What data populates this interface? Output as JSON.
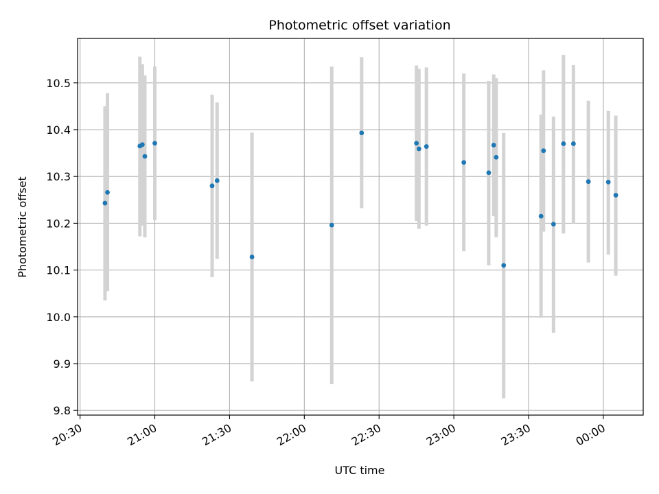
{
  "chart_data": {
    "type": "scatter",
    "title": "Photometric offset variation",
    "xlabel": "UTC time",
    "ylabel": "Photometric offset",
    "x_ticks": [
      "20:30",
      "21:00",
      "21:30",
      "22:00",
      "22:30",
      "23:00",
      "23:30",
      "00:00"
    ],
    "x_range": [
      "20:30",
      "00:16"
    ],
    "ylim": [
      9.79,
      10.595
    ],
    "y_ticks": [
      9.8,
      9.9,
      10.0,
      10.1,
      10.2,
      10.3,
      10.4,
      10.5
    ],
    "y_tick_labels": [
      "9.8",
      "9.9",
      "10.0",
      "10.1",
      "10.2",
      "10.3",
      "10.4",
      "10.5"
    ],
    "grid": true,
    "colors": {
      "points": "#1f77b4",
      "error_bars": "#d3d3d3",
      "grid": "#b0b0b0"
    },
    "series": [
      {
        "points": [
          {
            "x": "20:40",
            "y": 10.243,
            "low": 10.035,
            "high": 10.45
          },
          {
            "x": "20:41",
            "y": 10.266,
            "low": 10.055,
            "high": 10.478
          },
          {
            "x": "20:54",
            "y": 10.365,
            "low": 10.172,
            "high": 10.556
          },
          {
            "x": "20:55",
            "y": 10.368,
            "low": 10.195,
            "high": 10.54
          },
          {
            "x": "20:56",
            "y": 10.343,
            "low": 10.17,
            "high": 10.516
          },
          {
            "x": "21:00",
            "y": 10.371,
            "low": 10.207,
            "high": 10.535
          },
          {
            "x": "21:23",
            "y": 10.28,
            "low": 10.085,
            "high": 10.475
          },
          {
            "x": "21:25",
            "y": 10.291,
            "low": 10.124,
            "high": 10.458
          },
          {
            "x": "21:39",
            "y": 10.128,
            "low": 9.862,
            "high": 10.394
          },
          {
            "x": "22:11",
            "y": 10.196,
            "low": 9.856,
            "high": 10.535
          },
          {
            "x": "22:23",
            "y": 10.393,
            "low": 10.232,
            "high": 10.555
          },
          {
            "x": "22:45",
            "y": 10.371,
            "low": 10.205,
            "high": 10.537
          },
          {
            "x": "22:46",
            "y": 10.359,
            "low": 10.188,
            "high": 10.53
          },
          {
            "x": "22:49",
            "y": 10.364,
            "low": 10.195,
            "high": 10.533
          },
          {
            "x": "23:04",
            "y": 10.33,
            "low": 10.14,
            "high": 10.52
          },
          {
            "x": "23:14",
            "y": 10.308,
            "low": 10.11,
            "high": 10.504
          },
          {
            "x": "23:16",
            "y": 10.367,
            "low": 10.215,
            "high": 10.518
          },
          {
            "x": "23:17",
            "y": 10.341,
            "low": 10.17,
            "high": 10.51
          },
          {
            "x": "23:20",
            "y": 10.11,
            "low": 9.826,
            "high": 10.393
          },
          {
            "x": "23:35",
            "y": 10.215,
            "low": 9.998,
            "high": 10.432
          },
          {
            "x": "23:36",
            "y": 10.355,
            "low": 10.182,
            "high": 10.527
          },
          {
            "x": "23:40",
            "y": 10.198,
            "low": 9.966,
            "high": 10.428
          },
          {
            "x": "23:44",
            "y": 10.37,
            "low": 10.178,
            "high": 10.56
          },
          {
            "x": "23:48",
            "y": 10.37,
            "low": 10.2,
            "high": 10.538
          },
          {
            "x": "23:54",
            "y": 10.289,
            "low": 10.116,
            "high": 10.462
          },
          {
            "x": "00:02",
            "y": 10.288,
            "low": 10.133,
            "high": 10.44
          },
          {
            "x": "00:05",
            "y": 10.26,
            "low": 10.088,
            "high": 10.43
          }
        ]
      }
    ]
  }
}
